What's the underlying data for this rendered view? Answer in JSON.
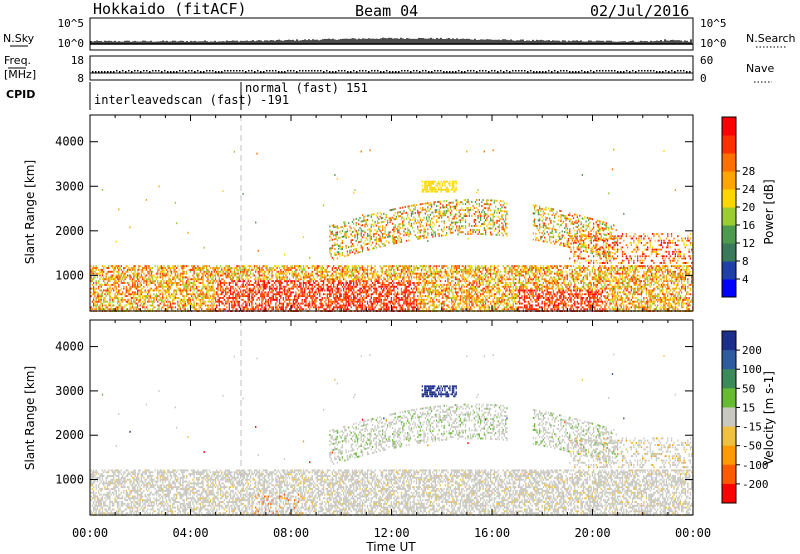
{
  "header": {
    "station": "Hokkaido (fitACF)",
    "beam": "Beam 04",
    "date": "02/Jul/2016"
  },
  "summary_panels": {
    "nsky_label": "N.Sky",
    "nsky_ticks": [
      "10^5",
      "10^0"
    ],
    "nsearch_label": "N.Search",
    "nsearch_ticks": [
      "10^5",
      "10^0"
    ],
    "freq_label_1": "Freq.",
    "freq_label_2": "[MHz]",
    "freq_ticks": [
      "18",
      "8"
    ],
    "nave_label": "Nave",
    "nave_ticks": [
      "60",
      "0"
    ],
    "cpid_label": "CPID",
    "cpid_modes": [
      "interleavedscan (fast) -191",
      "normal (fast) 151"
    ]
  },
  "chart_data": [
    {
      "type": "heatmap",
      "name": "power-panel",
      "ylabel": "Slant Range [km]",
      "xlabel": "Time UT",
      "x_ticks": [
        "00:00",
        "04:00",
        "08:00",
        "12:00",
        "16:00",
        "20:00",
        "00:00"
      ],
      "xlim_hours": [
        0,
        24
      ],
      "y_ticks": [
        1000,
        2000,
        3000,
        4000
      ],
      "ylim": [
        200,
        4600
      ],
      "colorbar": {
        "label": "Power [dB]",
        "ticks": [
          "4",
          "8",
          "12",
          "16",
          "20",
          "24",
          "28"
        ],
        "colors": [
          "#0000ff",
          "#2040a8",
          "#3a7a5a",
          "#4e9a4e",
          "#9acd32",
          "#ffd700",
          "#ffa500",
          "#ff7000",
          "#ff3000",
          "#ff0000"
        ]
      }
    },
    {
      "type": "heatmap",
      "name": "velocity-panel",
      "ylabel": "Slant Range [km]",
      "xlabel": "Time UT",
      "x_ticks": [
        "00:00",
        "04:00",
        "08:00",
        "12:00",
        "16:00",
        "20:00",
        "00:00"
      ],
      "xlim_hours": [
        0,
        24
      ],
      "y_ticks": [
        1000,
        2000,
        3000,
        4000
      ],
      "ylim": [
        200,
        4600
      ],
      "colorbar": {
        "label": "Velocity [m s-1]",
        "ticks": [
          "200",
          "100",
          "50",
          "15",
          "-15",
          "-50",
          "-100",
          "-200"
        ],
        "colors": [
          "#1c2e8c",
          "#2e5aa0",
          "#3a8a5a",
          "#66bb33",
          "#c8c8c0",
          "#f0c040",
          "#ff9a00",
          "#ff5a00",
          "#ff0000"
        ]
      }
    }
  ],
  "colors": {
    "ground_scatter": "#c8c8c0",
    "dashed_marker": "#c0c0c0"
  }
}
